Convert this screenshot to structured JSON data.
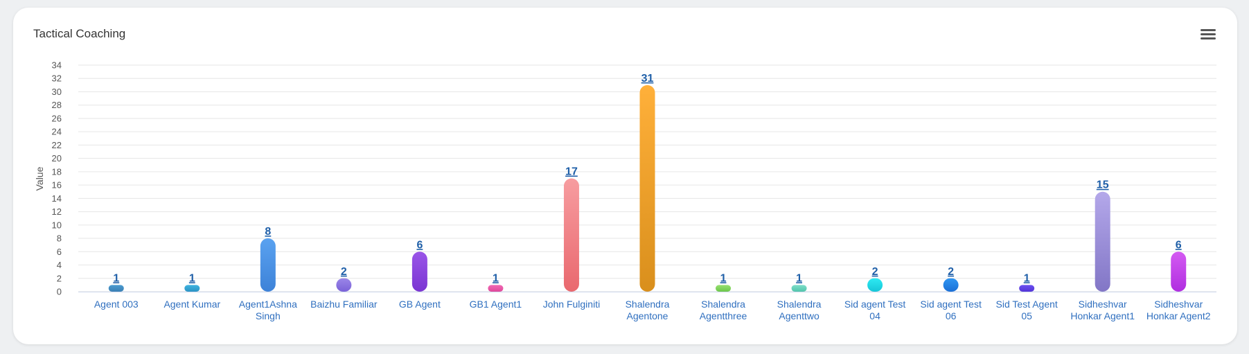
{
  "card": {
    "title": "Tactical Coaching"
  },
  "menu": {
    "icon": "hamburger-menu-icon"
  },
  "chart_data": {
    "type": "bar",
    "title": "Tactical Coaching",
    "ylabel": "Value",
    "xlabel": "",
    "ylim": [
      0,
      34
    ],
    "yticks": [
      0,
      2,
      4,
      6,
      8,
      10,
      12,
      14,
      16,
      18,
      20,
      22,
      24,
      26,
      28,
      30,
      32,
      34
    ],
    "grid": true,
    "legend": "none",
    "categories": [
      "Agent 003",
      "Agent Kumar",
      "Agent1Ashna Singh",
      "Baizhu Familiar",
      "GB Agent",
      "GB1 Agent1",
      "John Fulginiti",
      "Shalendra Agentone",
      "Shalendra Agentthree",
      "Shalendra Agenttwo",
      "Sid agent Test 04",
      "Sid agent Test 06",
      "Sid Test Agent 05",
      "Sidheshvar Honkar Agent1",
      "Sidheshvar Honkar Agent2"
    ],
    "values": [
      1,
      1,
      8,
      2,
      6,
      1,
      17,
      31,
      1,
      1,
      2,
      2,
      1,
      15,
      6
    ],
    "colors": [
      [
        "#4b9bd0",
        "#3a7fb4"
      ],
      [
        "#3fb3e0",
        "#2b93c4"
      ],
      [
        "#5aa2f0",
        "#3d82d8"
      ],
      [
        "#9b86e8",
        "#7a62d8"
      ],
      [
        "#9a55e8",
        "#7a35d2"
      ],
      [
        "#f06ab4",
        "#e0479a"
      ],
      [
        "#f79da0",
        "#e9686e"
      ],
      [
        "#ffb03a",
        "#d98f1c"
      ],
      [
        "#98e070",
        "#6cc64a"
      ],
      [
        "#7edec8",
        "#52c4ab"
      ],
      [
        "#2eeaf2",
        "#16c6d8"
      ],
      [
        "#2f95f2",
        "#1a6fd6"
      ],
      [
        "#6b4ff0",
        "#5234d6"
      ],
      [
        "#b4a8ea",
        "#8276c6"
      ],
      [
        "#d45af2",
        "#b02ee0"
      ]
    ]
  }
}
